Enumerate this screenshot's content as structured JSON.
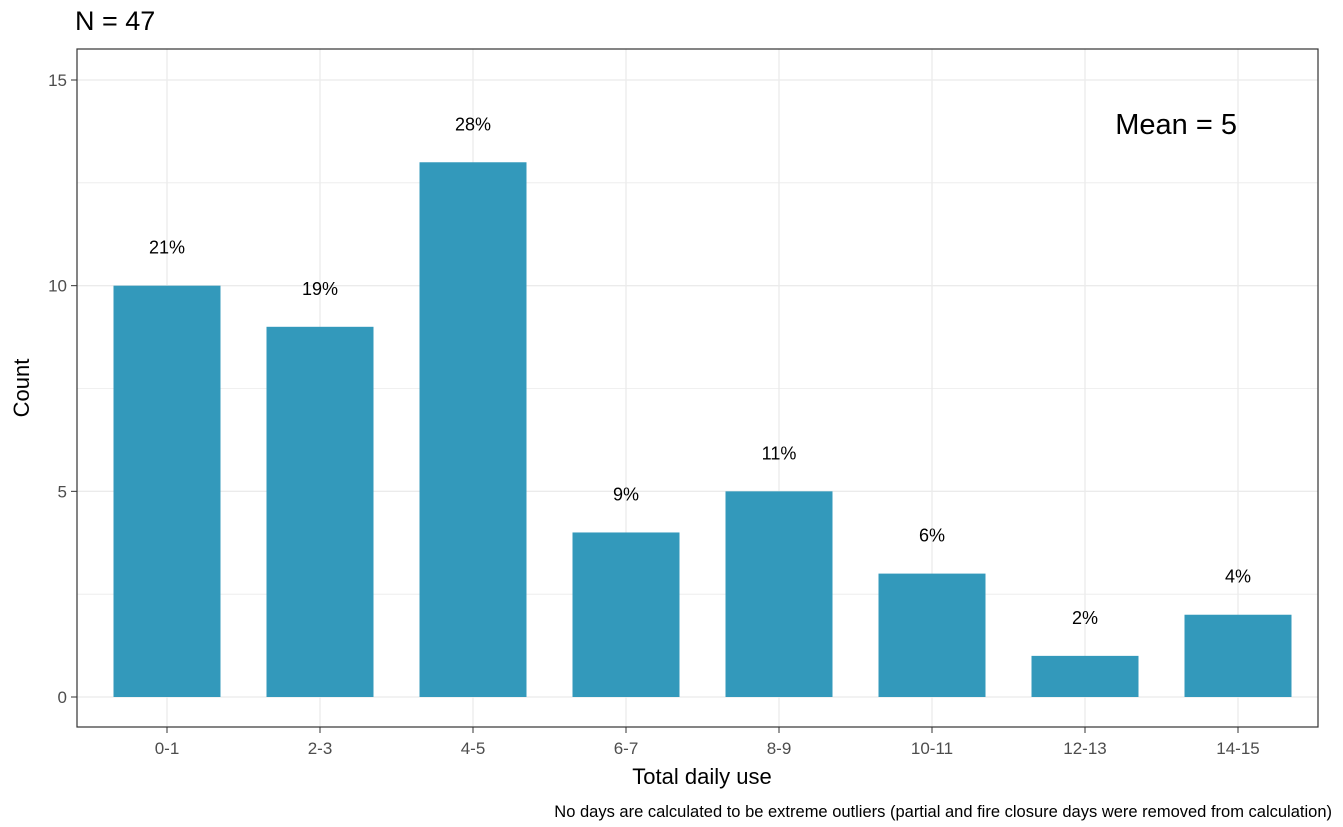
{
  "chart_data": {
    "type": "bar",
    "title": "N = 47",
    "annotation": "Mean = 5",
    "xlabel": "Total daily use",
    "ylabel": "Count",
    "caption": "No days are calculated to be extreme outliers (partial and fire closure days were removed from calculation)",
    "categories": [
      "0-1",
      "2-3",
      "4-5",
      "6-7",
      "8-9",
      "10-11",
      "12-13",
      "14-15"
    ],
    "values": [
      10,
      9,
      13,
      4,
      5,
      3,
      1,
      2
    ],
    "data_labels": [
      "21%",
      "19%",
      "28%",
      "9%",
      "11%",
      "6%",
      "2%",
      "4%"
    ],
    "ylim": [
      0,
      15.5
    ],
    "yticks": [
      0,
      5,
      10,
      15
    ],
    "grid": true,
    "legend": "none",
    "bar_color": "#3399bb",
    "grid_color": "#ebebeb",
    "panel_border_color": "#333333"
  }
}
